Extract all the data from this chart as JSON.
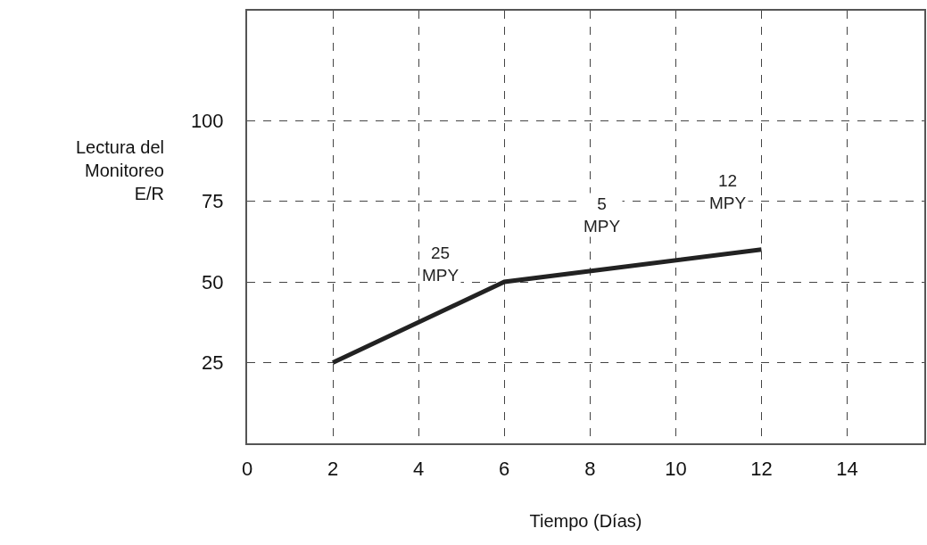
{
  "chart_data": {
    "type": "line",
    "xlabel": "Tiempo (Días)",
    "ylabel": "Lectura del\nMonitoreo\nE/R",
    "x": [
      2,
      6,
      12
    ],
    "series": [
      {
        "color": "#222222",
        "values": [
          25,
          50,
          60
        ]
      }
    ],
    "xlim": [
      0,
      15.8
    ],
    "xticks": [
      0,
      2,
      4,
      6,
      8,
      10,
      12,
      14
    ],
    "ylim": [
      0,
      134
    ],
    "yticks": [
      25,
      50,
      75,
      100
    ],
    "grid": true,
    "marker": "none",
    "line_style": "solid",
    "annotations": [
      "25\nMPY",
      "5\nMPY",
      "12\nMPY"
    ]
  }
}
